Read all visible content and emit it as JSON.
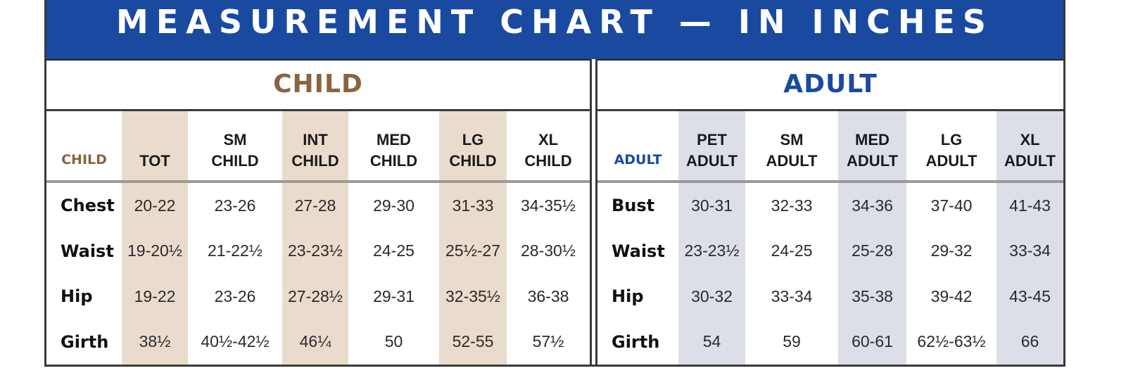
{
  "title": "MEASUREMENT CHART — IN INCHES",
  "child": {
    "heading": "CHILD",
    "corner_label": "CHILD",
    "columns": [
      {
        "line1": "",
        "line2": "TOT"
      },
      {
        "line1": "SM",
        "line2": "CHILD"
      },
      {
        "line1": "INT",
        "line2": "CHILD"
      },
      {
        "line1": "MED",
        "line2": "CHILD"
      },
      {
        "line1": "LG",
        "line2": "CHILD"
      },
      {
        "line1": "XL",
        "line2": "CHILD"
      }
    ],
    "rows": [
      {
        "label": "Chest",
        "values": [
          "20-22",
          "23-26",
          "27-28",
          "29-30",
          "31-33",
          "34-35½"
        ]
      },
      {
        "label": "Waist",
        "values": [
          "19-20½",
          "21-22½",
          "23-23½",
          "24-25",
          "25½-27",
          "28-30½"
        ]
      },
      {
        "label": "Hip",
        "values": [
          "19-22",
          "23-26",
          "27-28½",
          "29-31",
          "32-35½",
          "36-38"
        ]
      },
      {
        "label": "Girth",
        "values": [
          "38½",
          "40½-42½",
          "46¼",
          "50",
          "52-55",
          "57½"
        ]
      }
    ]
  },
  "adult": {
    "heading": "ADULT",
    "corner_label": "ADULT",
    "columns": [
      {
        "line1": "PET",
        "line2": "ADULT"
      },
      {
        "line1": "SM",
        "line2": "ADULT"
      },
      {
        "line1": "MED",
        "line2": "ADULT"
      },
      {
        "line1": "LG",
        "line2": "ADULT"
      },
      {
        "line1": "XL",
        "line2": "ADULT"
      }
    ],
    "rows": [
      {
        "label": "Bust",
        "values": [
          "30-31",
          "32-33",
          "34-36",
          "37-40",
          "41-43"
        ]
      },
      {
        "label": "Waist",
        "values": [
          "23-23½",
          "24-25",
          "25-28",
          "29-32",
          "33-34"
        ]
      },
      {
        "label": "Hip",
        "values": [
          "30-32",
          "33-34",
          "35-38",
          "39-42",
          "43-45"
        ]
      },
      {
        "label": "Girth",
        "values": [
          "54",
          "59",
          "60-61",
          "62½-63½",
          "66"
        ]
      }
    ]
  },
  "colors": {
    "title_bar": "#1a4aa0",
    "child_accent": "#8a6440",
    "adult_accent": "#1a4aa0",
    "child_shade": "#eadccd",
    "adult_shade": "#dcdfe8"
  }
}
